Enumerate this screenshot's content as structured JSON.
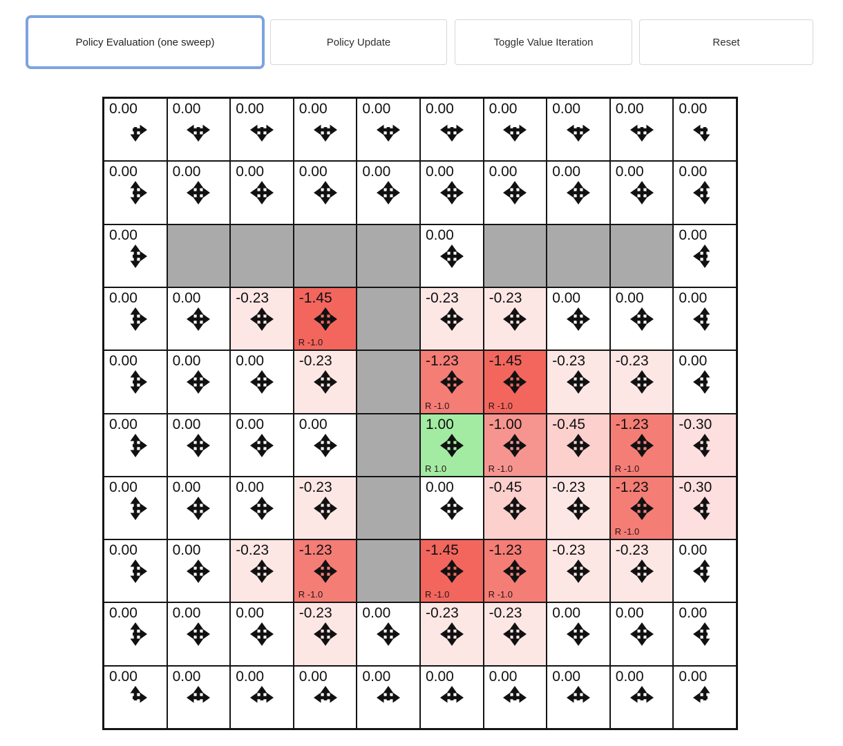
{
  "toolbar": {
    "buttons": [
      {
        "label": "Policy Evaluation (one sweep)",
        "selected": true
      },
      {
        "label": "Policy Update",
        "selected": false
      },
      {
        "label": "Toggle Value Iteration",
        "selected": false
      },
      {
        "label": "Reset",
        "selected": false
      }
    ],
    "selected_border_color": "#7da3e0"
  },
  "colors": {
    "wall": "#aaaaaa",
    "neutral_cell": "#ffffff",
    "positive_terminal": "#a3eba3",
    "strong_negative": "#f2665e",
    "grid_line": "#141414",
    "arrow": "#111111"
  },
  "grid": {
    "rows": 10,
    "cols": 10,
    "cells": [
      [
        {
          "value": "0.00",
          "arrows": "DR",
          "bg": "#ffffff"
        },
        {
          "value": "0.00",
          "arrows": "LDR",
          "bg": "#ffffff"
        },
        {
          "value": "0.00",
          "arrows": "LDR",
          "bg": "#ffffff"
        },
        {
          "value": "0.00",
          "arrows": "LDR",
          "bg": "#ffffff"
        },
        {
          "value": "0.00",
          "arrows": "LDR",
          "bg": "#ffffff"
        },
        {
          "value": "0.00",
          "arrows": "LDR",
          "bg": "#ffffff"
        },
        {
          "value": "0.00",
          "arrows": "LDR",
          "bg": "#ffffff"
        },
        {
          "value": "0.00",
          "arrows": "LDR",
          "bg": "#ffffff"
        },
        {
          "value": "0.00",
          "arrows": "LDR",
          "bg": "#ffffff"
        },
        {
          "value": "0.00",
          "arrows": "LD",
          "bg": "#ffffff"
        }
      ],
      [
        {
          "value": "0.00",
          "arrows": "UDR",
          "bg": "#ffffff"
        },
        {
          "value": "0.00",
          "arrows": "UDLR",
          "bg": "#ffffff"
        },
        {
          "value": "0.00",
          "arrows": "UDLR",
          "bg": "#ffffff"
        },
        {
          "value": "0.00",
          "arrows": "UDLR",
          "bg": "#ffffff"
        },
        {
          "value": "0.00",
          "arrows": "UDLR",
          "bg": "#ffffff"
        },
        {
          "value": "0.00",
          "arrows": "UDLR",
          "bg": "#ffffff"
        },
        {
          "value": "0.00",
          "arrows": "UDLR",
          "bg": "#ffffff"
        },
        {
          "value": "0.00",
          "arrows": "UDLR",
          "bg": "#ffffff"
        },
        {
          "value": "0.00",
          "arrows": "UDLR",
          "bg": "#ffffff"
        },
        {
          "value": "0.00",
          "arrows": "UDL",
          "bg": "#ffffff"
        }
      ],
      [
        {
          "value": "0.00",
          "arrows": "UDR",
          "bg": "#ffffff"
        },
        {
          "wall": true,
          "bg": "#aaaaaa"
        },
        {
          "wall": true,
          "bg": "#aaaaaa"
        },
        {
          "wall": true,
          "bg": "#aaaaaa"
        },
        {
          "wall": true,
          "bg": "#aaaaaa"
        },
        {
          "value": "0.00",
          "arrows": "UDLR",
          "bg": "#ffffff"
        },
        {
          "wall": true,
          "bg": "#aaaaaa"
        },
        {
          "wall": true,
          "bg": "#aaaaaa"
        },
        {
          "wall": true,
          "bg": "#aaaaaa"
        },
        {
          "value": "0.00",
          "arrows": "UDL",
          "bg": "#ffffff"
        }
      ],
      [
        {
          "value": "0.00",
          "arrows": "UDR",
          "bg": "#ffffff"
        },
        {
          "value": "0.00",
          "arrows": "UDLR",
          "bg": "#ffffff"
        },
        {
          "value": "-0.23",
          "arrows": "UDLR",
          "bg": "#fde7e5"
        },
        {
          "value": "-1.45",
          "arrows": "UDLR",
          "bg": "#f2665e",
          "reward": "R -1.0"
        },
        {
          "wall": true,
          "bg": "#aaaaaa"
        },
        {
          "value": "-0.23",
          "arrows": "UDLR",
          "bg": "#fde7e5"
        },
        {
          "value": "-0.23",
          "arrows": "UDLR",
          "bg": "#fde7e5"
        },
        {
          "value": "0.00",
          "arrows": "UDLR",
          "bg": "#ffffff"
        },
        {
          "value": "0.00",
          "arrows": "UDLR",
          "bg": "#ffffff"
        },
        {
          "value": "0.00",
          "arrows": "UDL",
          "bg": "#ffffff"
        }
      ],
      [
        {
          "value": "0.00",
          "arrows": "UDR",
          "bg": "#ffffff"
        },
        {
          "value": "0.00",
          "arrows": "UDLR",
          "bg": "#ffffff"
        },
        {
          "value": "0.00",
          "arrows": "UDLR",
          "bg": "#ffffff"
        },
        {
          "value": "-0.23",
          "arrows": "UDLR",
          "bg": "#fde7e5"
        },
        {
          "wall": true,
          "bg": "#aaaaaa"
        },
        {
          "value": "-1.23",
          "arrows": "UDLR",
          "bg": "#f47d76",
          "reward": "R -1.0"
        },
        {
          "value": "-1.45",
          "arrows": "UDLR",
          "bg": "#f2665e",
          "reward": "R -1.0"
        },
        {
          "value": "-0.23",
          "arrows": "UDLR",
          "bg": "#fde7e5"
        },
        {
          "value": "-0.23",
          "arrows": "UDLR",
          "bg": "#fde7e5"
        },
        {
          "value": "0.00",
          "arrows": "UDL",
          "bg": "#ffffff"
        }
      ],
      [
        {
          "value": "0.00",
          "arrows": "UDR",
          "bg": "#ffffff"
        },
        {
          "value": "0.00",
          "arrows": "UDLR",
          "bg": "#ffffff"
        },
        {
          "value": "0.00",
          "arrows": "UDLR",
          "bg": "#ffffff"
        },
        {
          "value": "0.00",
          "arrows": "UDLR",
          "bg": "#ffffff"
        },
        {
          "wall": true,
          "bg": "#aaaaaa"
        },
        {
          "value": "1.00",
          "arrows": "UDLR",
          "bg": "#a3eba3",
          "reward": "R 1.0"
        },
        {
          "value": "-1.00",
          "arrows": "UDLR",
          "bg": "#f69590",
          "reward": "R -1.0"
        },
        {
          "value": "-0.45",
          "arrows": "UDLR",
          "bg": "#fbd0cd"
        },
        {
          "value": "-1.23",
          "arrows": "UDLR",
          "bg": "#f47d76",
          "reward": "R -1.0"
        },
        {
          "value": "-0.30",
          "arrows": "UDL",
          "bg": "#fcdfde"
        }
      ],
      [
        {
          "value": "0.00",
          "arrows": "UDR",
          "bg": "#ffffff"
        },
        {
          "value": "0.00",
          "arrows": "UDLR",
          "bg": "#ffffff"
        },
        {
          "value": "0.00",
          "arrows": "UDLR",
          "bg": "#ffffff"
        },
        {
          "value": "-0.23",
          "arrows": "UDLR",
          "bg": "#fde7e5"
        },
        {
          "wall": true,
          "bg": "#aaaaaa"
        },
        {
          "value": "0.00",
          "arrows": "UDLR",
          "bg": "#ffffff"
        },
        {
          "value": "-0.45",
          "arrows": "UDLR",
          "bg": "#fbd0cd"
        },
        {
          "value": "-0.23",
          "arrows": "UDLR",
          "bg": "#fde7e5"
        },
        {
          "value": "-1.23",
          "arrows": "UDLR",
          "bg": "#f47d76",
          "reward": "R -1.0"
        },
        {
          "value": "-0.30",
          "arrows": "UDL",
          "bg": "#fcdfde"
        }
      ],
      [
        {
          "value": "0.00",
          "arrows": "UDR",
          "bg": "#ffffff"
        },
        {
          "value": "0.00",
          "arrows": "UDLR",
          "bg": "#ffffff"
        },
        {
          "value": "-0.23",
          "arrows": "UDLR",
          "bg": "#fde7e5"
        },
        {
          "value": "-1.23",
          "arrows": "UDLR",
          "bg": "#f47d76",
          "reward": "R -1.0"
        },
        {
          "wall": true,
          "bg": "#aaaaaa"
        },
        {
          "value": "-1.45",
          "arrows": "UDLR",
          "bg": "#f2665e",
          "reward": "R -1.0"
        },
        {
          "value": "-1.23",
          "arrows": "UDLR",
          "bg": "#f47d76",
          "reward": "R -1.0"
        },
        {
          "value": "-0.23",
          "arrows": "UDLR",
          "bg": "#fde7e5"
        },
        {
          "value": "-0.23",
          "arrows": "UDLR",
          "bg": "#fde7e5"
        },
        {
          "value": "0.00",
          "arrows": "UDL",
          "bg": "#ffffff"
        }
      ],
      [
        {
          "value": "0.00",
          "arrows": "UDR",
          "bg": "#ffffff"
        },
        {
          "value": "0.00",
          "arrows": "UDLR",
          "bg": "#ffffff"
        },
        {
          "value": "0.00",
          "arrows": "UDLR",
          "bg": "#ffffff"
        },
        {
          "value": "-0.23",
          "arrows": "UDLR",
          "bg": "#fde7e5"
        },
        {
          "value": "0.00",
          "arrows": "UDLR",
          "bg": "#ffffff"
        },
        {
          "value": "-0.23",
          "arrows": "UDLR",
          "bg": "#fde7e5"
        },
        {
          "value": "-0.23",
          "arrows": "UDLR",
          "bg": "#fde7e5"
        },
        {
          "value": "0.00",
          "arrows": "UDLR",
          "bg": "#ffffff"
        },
        {
          "value": "0.00",
          "arrows": "UDLR",
          "bg": "#ffffff"
        },
        {
          "value": "0.00",
          "arrows": "UDL",
          "bg": "#ffffff"
        }
      ],
      [
        {
          "value": "0.00",
          "arrows": "UR",
          "bg": "#ffffff"
        },
        {
          "value": "0.00",
          "arrows": "LUR",
          "bg": "#ffffff"
        },
        {
          "value": "0.00",
          "arrows": "LUR",
          "bg": "#ffffff"
        },
        {
          "value": "0.00",
          "arrows": "LUR",
          "bg": "#ffffff"
        },
        {
          "value": "0.00",
          "arrows": "LUR",
          "bg": "#ffffff"
        },
        {
          "value": "0.00",
          "arrows": "LUR",
          "bg": "#ffffff"
        },
        {
          "value": "0.00",
          "arrows": "LUR",
          "bg": "#ffffff"
        },
        {
          "value": "0.00",
          "arrows": "LUR",
          "bg": "#ffffff"
        },
        {
          "value": "0.00",
          "arrows": "LUR",
          "bg": "#ffffff"
        },
        {
          "value": "0.00",
          "arrows": "UL",
          "bg": "#ffffff"
        }
      ]
    ]
  }
}
